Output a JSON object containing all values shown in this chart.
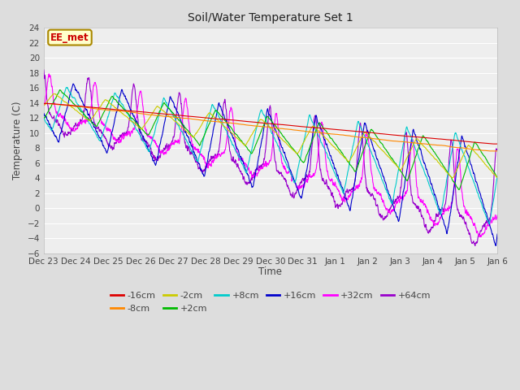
{
  "title": "Soil/Water Temperature Set 1",
  "ylabel": "Temperature (C)",
  "xlabel": "Time",
  "annotation": "EE_met",
  "annotation_color": "#cc0000",
  "annotation_bg": "#ffffcc",
  "annotation_border": "#aa8800",
  "ylim": [
    -6,
    24
  ],
  "yticks": [
    -6,
    -4,
    -2,
    0,
    2,
    4,
    6,
    8,
    10,
    12,
    14,
    16,
    18,
    20,
    22,
    24
  ],
  "bg_color": "#dddddd",
  "plot_bg": "#eeeeee",
  "grid_color": "#ffffff",
  "series": {
    "-16cm": {
      "color": "#dd0000",
      "lw": 1.2
    },
    "-8cm": {
      "color": "#ff8800",
      "lw": 1.2
    },
    "-2cm": {
      "color": "#cccc00",
      "lw": 1.2
    },
    "+2cm": {
      "color": "#00bb00",
      "lw": 1.2
    },
    "+8cm": {
      "color": "#00cccc",
      "lw": 1.2
    },
    "+16cm": {
      "color": "#0000cc",
      "lw": 1.2
    },
    "+32cm": {
      "color": "#ff00ff",
      "lw": 1.2
    },
    "+64cm": {
      "color": "#9900cc",
      "lw": 1.2
    }
  },
  "xtick_labels": [
    "Dec 23",
    "Dec 24",
    "Dec 25",
    "Dec 26",
    "Dec 27",
    "Dec 28",
    "Dec 29",
    "Dec 30",
    "Dec 31",
    "Jan 1",
    "Jan 2",
    "Jan 3",
    "Jan 4",
    "Jan 5",
    "Jan 6"
  ],
  "n_points": 2016,
  "days": 14
}
